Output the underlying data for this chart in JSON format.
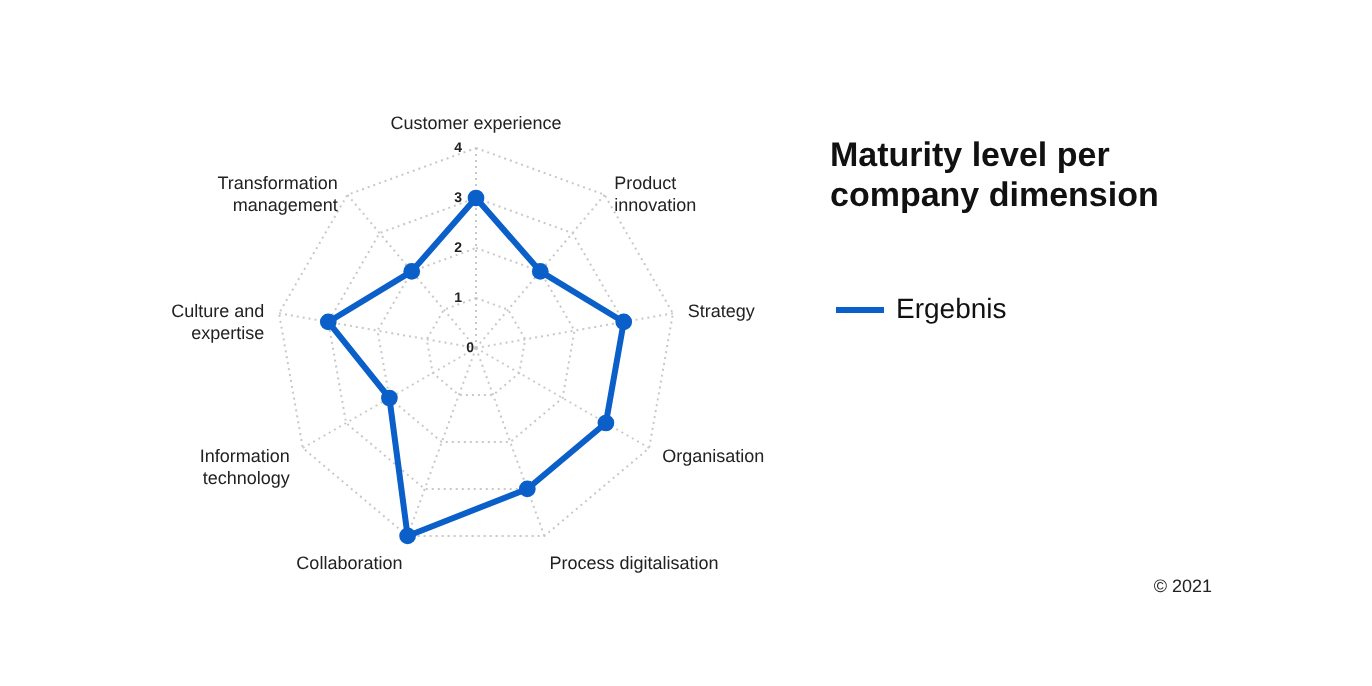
{
  "chart_data": {
    "type": "radar",
    "title": "Maturity level per company dimension",
    "categories": [
      "Customer experience",
      "Product innovation",
      "Strategy",
      "Organisation",
      "Process digitalisation",
      "Collaboration",
      "Information technology",
      "Culture and expertise",
      "Transformation management"
    ],
    "series": [
      {
        "name": "Ergebnis",
        "color": "#0a5fc8",
        "values": [
          3,
          2,
          3,
          3,
          3,
          4,
          2,
          3,
          2
        ]
      }
    ],
    "ylim": [
      0,
      4
    ],
    "yticks": [
      0,
      1,
      2,
      3,
      4
    ],
    "grid": true,
    "legend": "right",
    "marker": "circle",
    "line_style": "solid",
    "annotations": [
      "© 2021"
    ]
  }
}
